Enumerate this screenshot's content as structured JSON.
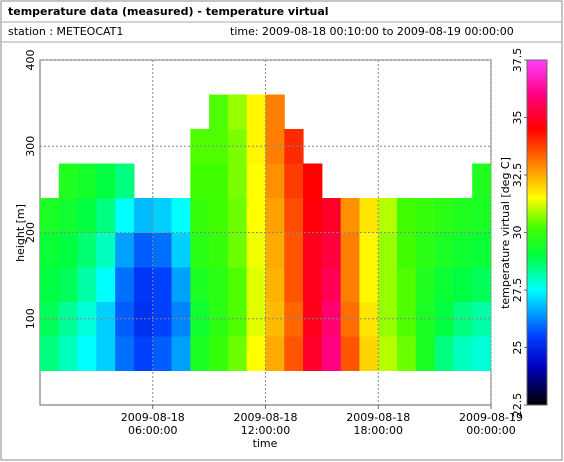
{
  "chart_data": {
    "type": "heatmap",
    "title": "temperature data (measured) - temperature virtual",
    "station": "station : METEOCAT1",
    "time_range": "time: 2009-08-18 00:10:00 to 2009-08-19 00:00:00",
    "x_label": "time",
    "y_label": "height [m]",
    "colorbar_label": "temperature virtual [deg C]",
    "x_edges": [
      0,
      1,
      2,
      3,
      4,
      5,
      6,
      7,
      8,
      9,
      10,
      11,
      12,
      13,
      14,
      15,
      16,
      17,
      18,
      19,
      20,
      21,
      22,
      23,
      24
    ],
    "y_edges": [
      40,
      80,
      120,
      160,
      200,
      240,
      280,
      320,
      360
    ],
    "z": [
      [
        28.5,
        28.8,
        29,
        29.2,
        29.5,
        null,
        null,
        null
      ],
      [
        28,
        28.3,
        28.8,
        29,
        29.3,
        29.6,
        null,
        null
      ],
      [
        27.5,
        27.8,
        28.2,
        28.6,
        29,
        29.4,
        null,
        null
      ],
      [
        27,
        27,
        27.5,
        28,
        28.5,
        29,
        null,
        null
      ],
      [
        26,
        25.8,
        26,
        26.5,
        27.5,
        28.5,
        null,
        null
      ],
      [
        25.5,
        25.2,
        25.3,
        25.8,
        26.8,
        null,
        null,
        null
      ],
      [
        25.8,
        25.5,
        25.5,
        26,
        27,
        null,
        null,
        null
      ],
      [
        26.5,
        26.2,
        26.5,
        27,
        27.5,
        null,
        null,
        null
      ],
      [
        29.5,
        29.3,
        29.5,
        29.8,
        30,
        30.2,
        30.3,
        null
      ],
      [
        30,
        29.8,
        29.8,
        30,
        30.2,
        30.2,
        30.3,
        30.3
      ],
      [
        30.5,
        30.3,
        30.3,
        30.5,
        30.5,
        30.6,
        30.6,
        30.8
      ],
      [
        31.5,
        31.3,
        31.3,
        31.4,
        31.5,
        31.5,
        31.6,
        31.6
      ],
      [
        32.5,
        32.3,
        32.4,
        32.5,
        32.6,
        32.8,
        33,
        33
      ],
      [
        33.5,
        33.3,
        33.5,
        33.5,
        33.6,
        33.8,
        34,
        null
      ],
      [
        35,
        34.8,
        34.8,
        34.8,
        34.6,
        34.5,
        null,
        null
      ],
      [
        36,
        35.8,
        35.5,
        35.2,
        35,
        null,
        null,
        null
      ],
      [
        33.5,
        33.2,
        33,
        33,
        32.8,
        null,
        null,
        null
      ],
      [
        32,
        31.8,
        31.6,
        31.6,
        31.8,
        null,
        null,
        null
      ],
      [
        31,
        30.8,
        30.8,
        30.8,
        31,
        null,
        null,
        null
      ],
      [
        30.5,
        30.3,
        30.3,
        30.2,
        30.2,
        null,
        null,
        null
      ],
      [
        29.5,
        29.5,
        29.6,
        29.8,
        30,
        null,
        null,
        null
      ],
      [
        28.5,
        29,
        29.2,
        29.5,
        29.8,
        null,
        null,
        null
      ],
      [
        28,
        28.5,
        29,
        29.3,
        29.6,
        null,
        null,
        null
      ],
      [
        27.8,
        28.2,
        28.8,
        29.2,
        29.5,
        29.6,
        null,
        null
      ]
    ],
    "xlim": [
      0,
      24
    ],
    "xticks": [
      {
        "value": 6,
        "label": "2009-08-18 06:00:00"
      },
      {
        "value": 12,
        "label": "2009-08-18 12:00:00"
      },
      {
        "value": 18,
        "label": "2009-08-18 18:00:00"
      },
      {
        "value": 24,
        "label": "2009-08-19 00:00:00"
      }
    ],
    "ylim": [
      0,
      400
    ],
    "yticks": [
      100,
      200,
      300,
      400
    ],
    "clim": [
      22.5,
      37.5
    ],
    "cticks": [
      22.5,
      25,
      27.5,
      30,
      32.5,
      35,
      37.5
    ],
    "colormap": [
      {
        "value": 22.5,
        "color": "#000000"
      },
      {
        "value": 24.2,
        "color": "#0000c0"
      },
      {
        "value": 25.5,
        "color": "#0040ff"
      },
      {
        "value": 27.5,
        "color": "#00ffff"
      },
      {
        "value": 29,
        "color": "#00ff40"
      },
      {
        "value": 30.2,
        "color": "#40ff00"
      },
      {
        "value": 31.5,
        "color": "#ffff00"
      },
      {
        "value": 33,
        "color": "#ff8000"
      },
      {
        "value": 34.5,
        "color": "#ff0000"
      },
      {
        "value": 36,
        "color": "#ff0080"
      },
      {
        "value": 37.5,
        "color": "#ff40ff"
      }
    ],
    "grid": true
  }
}
